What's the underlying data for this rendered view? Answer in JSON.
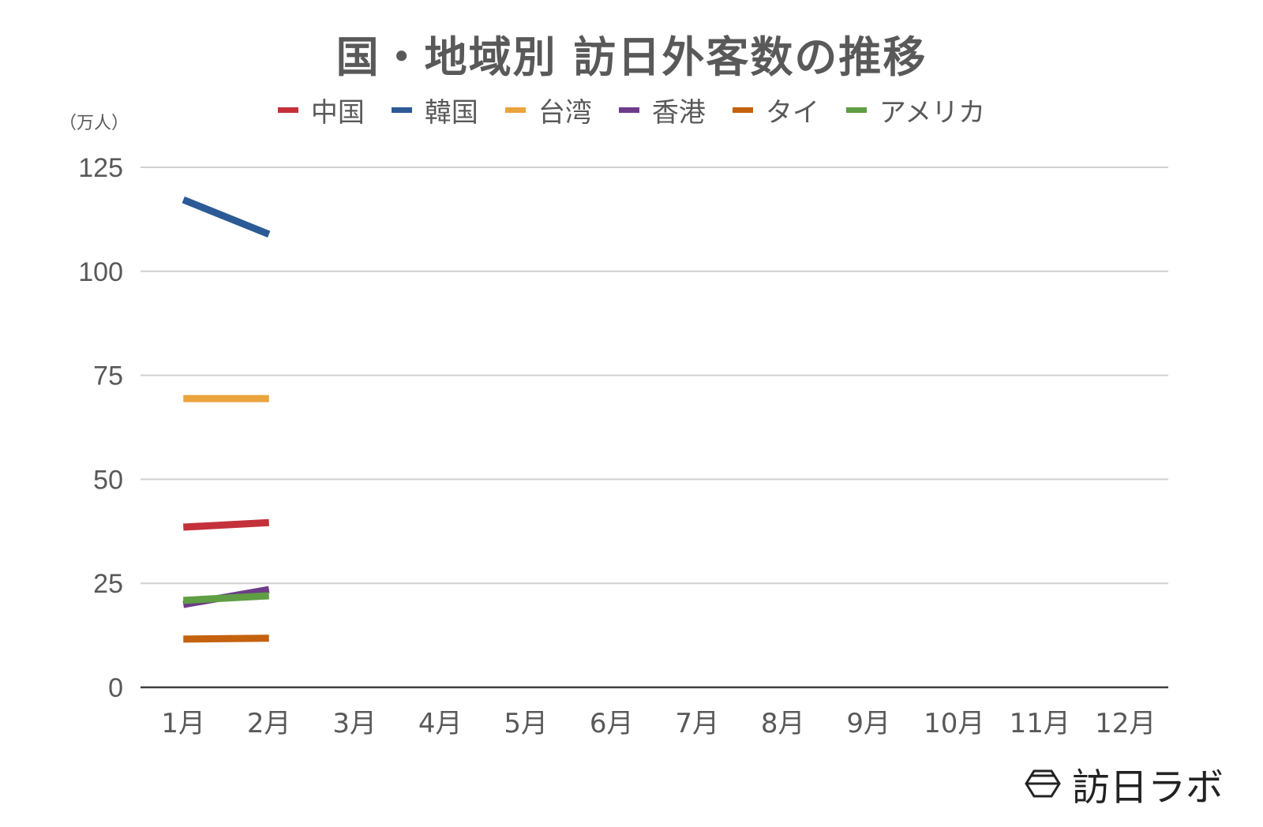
{
  "header": {
    "title": "国・地域別 訪日外客数の推移"
  },
  "unit_label": "（万人）",
  "legend": [
    {
      "label": "中国",
      "color": "#c4313a"
    },
    {
      "label": "韓国",
      "color": "#2c5a96"
    },
    {
      "label": "台湾",
      "color": "#eba33e"
    },
    {
      "label": "香港",
      "color": "#6e3b8a"
    },
    {
      "label": "タイ",
      "color": "#c5620f"
    },
    {
      "label": "アメリカ",
      "color": "#5f9e44"
    }
  ],
  "logo": {
    "text": "訪日ラボ"
  },
  "chart_data": {
    "type": "line",
    "title": "国・地域別 訪日外客数の推移",
    "xlabel": "",
    "ylabel": "（万人）",
    "categories": [
      "1月",
      "2月",
      "3月",
      "4月",
      "5月",
      "6月",
      "7月",
      "8月",
      "9月",
      "10月",
      "11月",
      "12月"
    ],
    "yticks": [
      "0",
      "25",
      "50",
      "75",
      "100",
      "125"
    ],
    "ylim": [
      0,
      125
    ],
    "grid": true,
    "legend_position": "top",
    "series": [
      {
        "name": "中国",
        "color": "#c4313a",
        "values": [
          38.5,
          39.6,
          null,
          null,
          null,
          null,
          null,
          null,
          null,
          null,
          null,
          null
        ]
      },
      {
        "name": "韓国",
        "color": "#2c5a96",
        "values": [
          117.2,
          108.9,
          null,
          null,
          null,
          null,
          null,
          null,
          null,
          null,
          null,
          null
        ]
      },
      {
        "name": "台湾",
        "color": "#eba33e",
        "values": [
          69.4,
          69.4,
          null,
          null,
          null,
          null,
          null,
          null,
          null,
          null,
          null,
          null
        ]
      },
      {
        "name": "香港",
        "color": "#6e3b8a",
        "values": [
          19.9,
          23.5,
          null,
          null,
          null,
          null,
          null,
          null,
          null,
          null,
          null,
          null
        ]
      },
      {
        "name": "タイ",
        "color": "#c5620f",
        "values": [
          11.6,
          11.8,
          null,
          null,
          null,
          null,
          null,
          null,
          null,
          null,
          null,
          null
        ]
      },
      {
        "name": "アメリカ",
        "color": "#5f9e44",
        "values": [
          20.9,
          22.0,
          null,
          null,
          null,
          null,
          null,
          null,
          null,
          null,
          null,
          null
        ]
      }
    ]
  }
}
